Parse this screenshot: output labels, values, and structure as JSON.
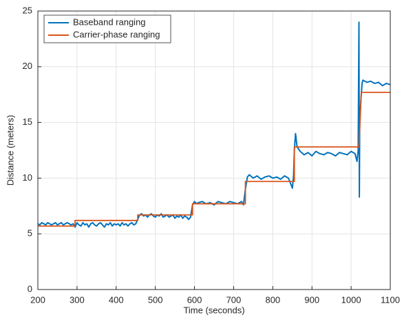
{
  "chart_data": {
    "type": "line",
    "xlabel": "Time (seconds)",
    "ylabel": "Distance (meters)",
    "xlim": [
      200,
      1100
    ],
    "xticks": [
      200,
      300,
      400,
      500,
      600,
      700,
      800,
      900,
      1000,
      1100
    ],
    "ylim": [
      0,
      25
    ],
    "yticks": [
      0,
      5,
      10,
      15,
      20,
      25
    ],
    "grid": true,
    "legend": "top-left",
    "series": [
      {
        "name": "Baseband ranging",
        "color": "#0072bd",
        "x": [
          200,
          205,
          210,
          215,
          220,
          225,
          230,
          235,
          240,
          245,
          250,
          255,
          260,
          265,
          270,
          275,
          280,
          285,
          290,
          295,
          300,
          305,
          310,
          315,
          320,
          325,
          330,
          335,
          340,
          345,
          350,
          355,
          360,
          365,
          370,
          375,
          380,
          385,
          390,
          395,
          400,
          405,
          410,
          415,
          420,
          425,
          430,
          435,
          440,
          445,
          450,
          455,
          460,
          465,
          470,
          475,
          480,
          485,
          490,
          495,
          500,
          505,
          510,
          515,
          520,
          525,
          530,
          535,
          540,
          545,
          550,
          555,
          560,
          565,
          570,
          575,
          580,
          585,
          590,
          595,
          600,
          605,
          610,
          620,
          630,
          640,
          650,
          660,
          670,
          680,
          690,
          700,
          710,
          720,
          725,
          730,
          735,
          740,
          750,
          760,
          770,
          780,
          790,
          800,
          810,
          820,
          830,
          840,
          850,
          853,
          855,
          858,
          862,
          870,
          880,
          890,
          900,
          910,
          920,
          930,
          940,
          950,
          960,
          970,
          980,
          990,
          1000,
          1010,
          1015,
          1018,
          1020,
          1021,
          1022,
          1025,
          1028,
          1030,
          1040,
          1050,
          1060,
          1070,
          1080,
          1090,
          1100
        ],
        "values": [
          5.9,
          5.8,
          6.0,
          5.9,
          5.8,
          6.0,
          5.9,
          5.8,
          5.9,
          6.0,
          5.8,
          5.9,
          6.0,
          5.8,
          5.9,
          6.0,
          5.9,
          5.8,
          5.9,
          5.6,
          6.0,
          5.8,
          5.7,
          6.0,
          5.8,
          5.9,
          5.6,
          5.9,
          6.0,
          5.8,
          5.7,
          5.9,
          6.0,
          5.8,
          5.6,
          5.9,
          5.8,
          6.0,
          5.7,
          5.9,
          5.8,
          5.9,
          5.7,
          6.0,
          5.8,
          5.9,
          5.7,
          5.9,
          6.0,
          5.8,
          5.9,
          6.3,
          6.7,
          6.8,
          6.6,
          6.7,
          6.5,
          6.7,
          6.8,
          6.6,
          6.5,
          6.7,
          6.6,
          6.8,
          6.5,
          6.6,
          6.7,
          6.5,
          6.6,
          6.7,
          6.4,
          6.6,
          6.5,
          6.7,
          6.4,
          6.6,
          6.5,
          6.3,
          6.5,
          7.6,
          7.9,
          7.7,
          7.8,
          7.9,
          7.7,
          7.8,
          7.6,
          7.9,
          7.8,
          7.7,
          7.9,
          7.8,
          7.7,
          7.9,
          7.6,
          9.0,
          10.1,
          10.3,
          10.0,
          10.2,
          9.9,
          10.1,
          10.2,
          10.0,
          10.1,
          9.9,
          10.2,
          10.0,
          9.1,
          10.2,
          12.5,
          14.0,
          12.8,
          12.4,
          12.1,
          12.3,
          12.0,
          12.4,
          12.2,
          12.1,
          12.3,
          12.2,
          12.0,
          12.3,
          12.2,
          12.1,
          12.4,
          12.2,
          11.5,
          12.5,
          24.0,
          8.3,
          15.0,
          17.0,
          18.5,
          18.8,
          18.6,
          18.7,
          18.5,
          18.6,
          18.3,
          18.5,
          18.4
        ]
      },
      {
        "name": "Carrier-phase ranging",
        "color": "#d95319",
        "x": [
          200,
          295,
          295,
          455,
          455,
          595,
          595,
          730,
          730,
          855,
          855,
          1020,
          1026,
          1100
        ],
        "values": [
          5.7,
          5.7,
          6.2,
          6.2,
          6.7,
          6.7,
          7.7,
          7.7,
          9.7,
          9.7,
          12.8,
          12.8,
          17.7,
          17.7
        ]
      }
    ]
  }
}
